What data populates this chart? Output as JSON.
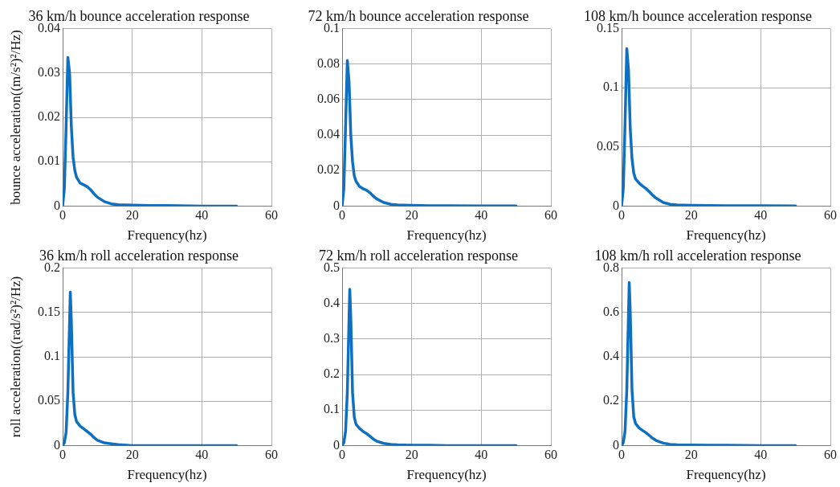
{
  "chart_data": [
    {
      "type": "line",
      "title": "36 km/h bounce acceleration response",
      "xlabel": "Frequency(hz)",
      "ylabel": "bounce acceleration((m/s²)²/Hz)",
      "color": "#0f6fc0",
      "grid": true,
      "xlim": [
        0,
        60
      ],
      "xticks": [
        0,
        20,
        40,
        60
      ],
      "ylim": [
        0,
        0.04
      ],
      "yticks": [
        0,
        0.01,
        0.02,
        0.03,
        0.04
      ],
      "x": [
        0,
        0.5,
        1,
        1.5,
        2,
        2.5,
        3,
        3.5,
        4,
        5,
        6,
        7,
        8,
        9,
        10,
        12,
        14,
        16,
        20,
        25,
        30,
        40,
        50
      ],
      "values": [
        0,
        0.004,
        0.018,
        0.0335,
        0.03,
        0.018,
        0.011,
        0.008,
        0.0065,
        0.0052,
        0.0048,
        0.0044,
        0.0037,
        0.0028,
        0.002,
        0.001,
        0.0005,
        0.0003,
        0.0002,
        0.0001,
        0.0001,
        0,
        0
      ]
    },
    {
      "type": "line",
      "title": "72 km/h bounce acceleration response",
      "xlabel": "Frequency(hz)",
      "color": "#0f6fc0",
      "grid": true,
      "xlim": [
        0,
        60
      ],
      "xticks": [
        0,
        20,
        40,
        60
      ],
      "ylim": [
        0,
        0.1
      ],
      "yticks": [
        0,
        0.02,
        0.04,
        0.06,
        0.08,
        0.1
      ],
      "x": [
        0,
        0.5,
        1,
        1.5,
        2,
        2.5,
        3,
        3.5,
        4,
        5,
        6,
        7,
        8,
        9,
        10,
        12,
        14,
        16,
        20,
        25,
        30,
        40,
        50
      ],
      "values": [
        0,
        0.01,
        0.045,
        0.082,
        0.07,
        0.04,
        0.025,
        0.017,
        0.014,
        0.011,
        0.0098,
        0.009,
        0.0075,
        0.0055,
        0.004,
        0.002,
        0.001,
        0.0006,
        0.0004,
        0.0002,
        0.0002,
        0.0001,
        0.0001
      ]
    },
    {
      "type": "line",
      "title": "108 km/h bounce acceleration response",
      "xlabel": "Frequency(hz)",
      "color": "#0f6fc0",
      "grid": true,
      "xlim": [
        0,
        60
      ],
      "xticks": [
        0,
        20,
        40,
        60
      ],
      "ylim": [
        0,
        0.15
      ],
      "yticks": [
        0,
        0.05,
        0.1,
        0.15
      ],
      "x": [
        0,
        0.5,
        1,
        1.5,
        2,
        2.5,
        3,
        3.5,
        4,
        5,
        6,
        7,
        8,
        9,
        10,
        12,
        14,
        16,
        20,
        25,
        30,
        40,
        50
      ],
      "values": [
        0,
        0.015,
        0.07,
        0.133,
        0.115,
        0.065,
        0.04,
        0.028,
        0.023,
        0.0195,
        0.017,
        0.0148,
        0.012,
        0.009,
        0.0065,
        0.003,
        0.0015,
        0.001,
        0.0006,
        0.0004,
        0.0003,
        0.0002,
        0.0001
      ]
    },
    {
      "type": "line",
      "title": "36 km/h roll acceleration response",
      "xlabel": "Frequency(hz)",
      "ylabel": "roll acceleration((rad/s²)²/Hz)",
      "color": "#0f6fc0",
      "grid": true,
      "xlim": [
        0,
        60
      ],
      "xticks": [
        0,
        20,
        40,
        60
      ],
      "ylim": [
        0,
        0.2
      ],
      "yticks": [
        0,
        0.05,
        0.1,
        0.15,
        0.2
      ],
      "x": [
        0,
        0.5,
        1,
        1.5,
        2,
        2.2,
        2.5,
        3,
        3.5,
        4,
        5,
        6,
        7,
        8,
        9,
        10,
        12,
        14,
        16,
        20,
        25,
        30,
        40,
        50
      ],
      "values": [
        0,
        0.003,
        0.015,
        0.06,
        0.14,
        0.173,
        0.14,
        0.06,
        0.035,
        0.027,
        0.022,
        0.019,
        0.016,
        0.013,
        0.009,
        0.006,
        0.003,
        0.002,
        0.001,
        0,
        0,
        0,
        0,
        0
      ]
    },
    {
      "type": "line",
      "title": "72 km/h roll acceleration response",
      "xlabel": "Frequency(hz)",
      "color": "#0f6fc0",
      "grid": true,
      "xlim": [
        0,
        60
      ],
      "xticks": [
        0,
        20,
        40,
        60
      ],
      "ylim": [
        0,
        0.5
      ],
      "yticks": [
        0,
        0.1,
        0.2,
        0.3,
        0.4,
        0.5
      ],
      "x": [
        0,
        0.5,
        1,
        1.5,
        2,
        2.2,
        2.5,
        3,
        3.5,
        4,
        5,
        6,
        7,
        8,
        9,
        10,
        12,
        14,
        16,
        20,
        25,
        30,
        40,
        50
      ],
      "values": [
        0,
        0.008,
        0.04,
        0.15,
        0.36,
        0.44,
        0.36,
        0.15,
        0.08,
        0.06,
        0.048,
        0.04,
        0.034,
        0.026,
        0.018,
        0.012,
        0.006,
        0.003,
        0.002,
        0.001,
        0.001,
        0,
        0,
        0
      ]
    },
    {
      "type": "line",
      "title": "108 km/h roll acceleration response",
      "xlabel": "Frequency(hz)",
      "color": "#0f6fc0",
      "grid": true,
      "xlim": [
        0,
        60
      ],
      "xticks": [
        0,
        20,
        40,
        60
      ],
      "ylim": [
        0,
        0.8
      ],
      "yticks": [
        0,
        0.2,
        0.4,
        0.6,
        0.8
      ],
      "x": [
        0,
        0.5,
        1,
        1.5,
        2,
        2.2,
        2.5,
        3,
        3.5,
        4,
        5,
        6,
        7,
        8,
        9,
        10,
        12,
        14,
        16,
        20,
        25,
        30,
        40,
        50
      ],
      "values": [
        0,
        0.013,
        0.065,
        0.25,
        0.6,
        0.735,
        0.6,
        0.25,
        0.13,
        0.1,
        0.08,
        0.068,
        0.058,
        0.045,
        0.032,
        0.022,
        0.011,
        0.005,
        0.003,
        0.002,
        0.001,
        0.001,
        0,
        0
      ]
    }
  ]
}
